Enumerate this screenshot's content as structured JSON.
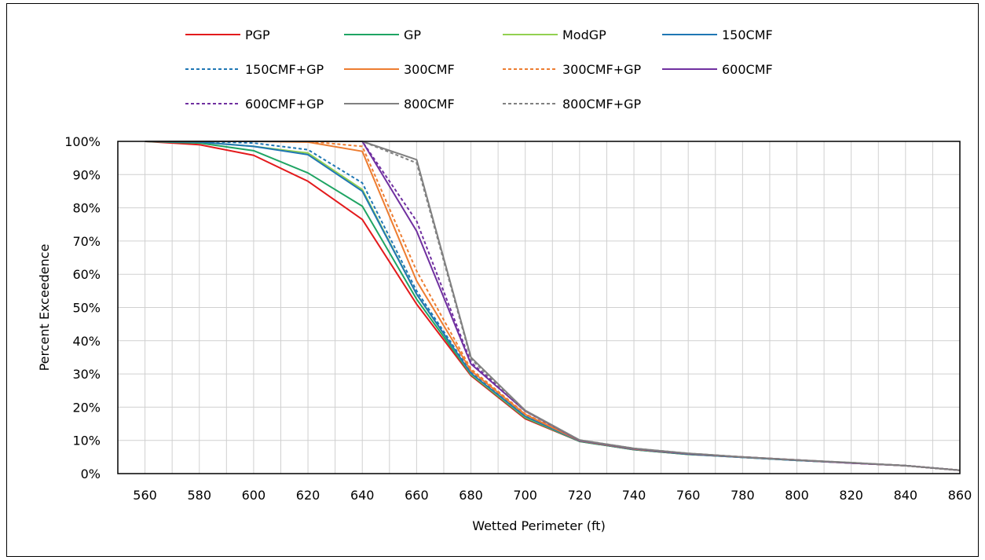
{
  "chart_data": {
    "type": "line",
    "title": "",
    "xlabel": "Wetted Perimeter (ft)",
    "ylabel": "Percent Exceedence",
    "xlim": [
      550,
      860
    ],
    "ylim": [
      0,
      100
    ],
    "x_ticks": [
      560,
      580,
      600,
      620,
      640,
      660,
      680,
      700,
      720,
      740,
      760,
      780,
      800,
      820,
      840,
      860
    ],
    "y_ticks": [
      0,
      10,
      20,
      30,
      40,
      50,
      60,
      70,
      80,
      90,
      100
    ],
    "y_tick_labels": [
      "0%",
      "10%",
      "20%",
      "30%",
      "40%",
      "50%",
      "60%",
      "70%",
      "80%",
      "90%",
      "100%"
    ],
    "grid": true,
    "legend_position": "top",
    "x": [
      560,
      580,
      600,
      620,
      640,
      660,
      680,
      700,
      720,
      740,
      760,
      780,
      800,
      820,
      840,
      860
    ],
    "series": [
      {
        "name": "PGP",
        "color": "#e31a1c",
        "dash": "solid",
        "values": [
          100,
          99,
          95.8,
          88,
          76.5,
          51,
          29.5,
          16.5,
          9.7,
          7.2,
          5.8,
          4.9,
          4.0,
          3.2,
          2.4,
          1.0
        ]
      },
      {
        "name": "GP",
        "color": "#1fa463",
        "dash": "solid",
        "values": [
          100,
          99.5,
          97.2,
          90.5,
          80.5,
          52.5,
          29.8,
          16.8,
          9.7,
          7.2,
          5.8,
          4.9,
          4.0,
          3.2,
          2.4,
          1.0
        ]
      },
      {
        "name": "ModGP",
        "color": "#92d050",
        "dash": "solid",
        "values": [
          100,
          99.8,
          98.5,
          96.5,
          85.5,
          54,
          30,
          17,
          9.8,
          7.3,
          5.9,
          4.9,
          4.0,
          3.2,
          2.4,
          1.0
        ]
      },
      {
        "name": "150CMF",
        "color": "#1f77b4",
        "dash": "solid",
        "values": [
          100,
          99.8,
          98.5,
          96,
          85,
          54,
          30.2,
          17.2,
          9.8,
          7.3,
          5.9,
          4.9,
          4.0,
          3.2,
          2.4,
          1.0
        ]
      },
      {
        "name": "150CMF+GP",
        "color": "#1f77b4",
        "dash": "dashed",
        "values": [
          100,
          100,
          99.5,
          97.5,
          87.5,
          55,
          30.5,
          17.5,
          9.9,
          7.3,
          5.9,
          4.9,
          4.0,
          3.2,
          2.4,
          1.0
        ]
      },
      {
        "name": "300CMF",
        "color": "#ed7d31",
        "dash": "solid",
        "values": [
          100,
          100,
          100,
          99.8,
          97,
          58,
          31,
          17.8,
          9.9,
          7.4,
          6.0,
          5.0,
          4.1,
          3.2,
          2.4,
          1.0
        ]
      },
      {
        "name": "300CMF+GP",
        "color": "#ed7d31",
        "dash": "dashed",
        "values": [
          100,
          100,
          100,
          100,
          98.5,
          61,
          31.5,
          18,
          10,
          7.4,
          6.0,
          5.0,
          4.1,
          3.2,
          2.4,
          1.0
        ]
      },
      {
        "name": "600CMF",
        "color": "#7030a0",
        "dash": "solid",
        "values": [
          100,
          100,
          100,
          100,
          100,
          73,
          33,
          18.8,
          10,
          7.5,
          6.0,
          5.0,
          4.1,
          3.2,
          2.4,
          1.0
        ]
      },
      {
        "name": "600CMF+GP",
        "color": "#7030a0",
        "dash": "dashed",
        "values": [
          100,
          100,
          100,
          100,
          100,
          76,
          33.5,
          19,
          10,
          7.5,
          6.0,
          5.0,
          4.1,
          3.2,
          2.4,
          1.0
        ]
      },
      {
        "name": "800CMF",
        "color": "#808080",
        "dash": "solid",
        "values": [
          100,
          100,
          100,
          100,
          100,
          94.5,
          35,
          19,
          10.1,
          7.6,
          6.1,
          5.0,
          4.1,
          3.3,
          2.4,
          1.0
        ]
      },
      {
        "name": "800CMF+GP",
        "color": "#808080",
        "dash": "dashed",
        "values": [
          100,
          100,
          100,
          100,
          100,
          93.5,
          34.5,
          18.8,
          10.1,
          7.6,
          6.1,
          5.0,
          4.1,
          3.3,
          2.4,
          1.0
        ]
      }
    ]
  }
}
